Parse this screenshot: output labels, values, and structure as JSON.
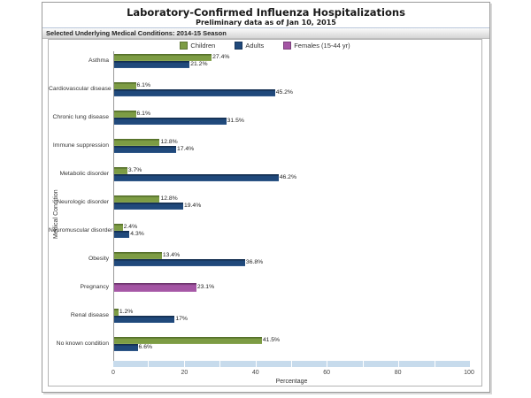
{
  "title": "Laboratory-Confirmed Influenza Hospitalizations",
  "subtitle": "Preliminary data as of Jan 10, 2015",
  "section_header": "Selected Underlying Medical Conditions: 2014-15 Season",
  "colors": {
    "children_green": "#7d9c44",
    "adults_blue": "#20497b",
    "females_purple": "#a455a4",
    "axis_band_blue": "#c7dbec"
  },
  "chart_data": {
    "type": "bar",
    "orientation": "horizontal",
    "title": "Laboratory-Confirmed Influenza Hospitalizations",
    "subtitle": "Preliminary data as of Jan 10, 2015",
    "xlabel": "Percentage",
    "ylabel": "Medical Condition",
    "xlim": [
      0,
      100
    ],
    "xticks": [
      0,
      20,
      40,
      60,
      80,
      100
    ],
    "grid": false,
    "legend_position": "top-center",
    "categories": [
      "Asthma",
      "Cardiovascular disease",
      "Chronic lung disease",
      "Immune suppression",
      "Metabolic disorder",
      "Neurologic disorder",
      "Neuromuscular disorder",
      "Obesity",
      "Pregnancy",
      "Renal disease",
      "No known condition"
    ],
    "series": [
      {
        "name": "Children",
        "color": "#7d9c44",
        "values": [
          27.4,
          6.1,
          6.1,
          12.8,
          3.7,
          12.8,
          2.4,
          13.4,
          null,
          1.2,
          41.5
        ]
      },
      {
        "name": "Adults",
        "color": "#20497b",
        "values": [
          21.2,
          45.2,
          31.5,
          17.4,
          46.2,
          19.4,
          4.3,
          36.8,
          null,
          17,
          6.6
        ]
      },
      {
        "name": "Females (15-44 yr)",
        "color": "#a455a4",
        "values": [
          null,
          null,
          null,
          null,
          null,
          null,
          null,
          null,
          23.1,
          null,
          null
        ]
      }
    ]
  }
}
